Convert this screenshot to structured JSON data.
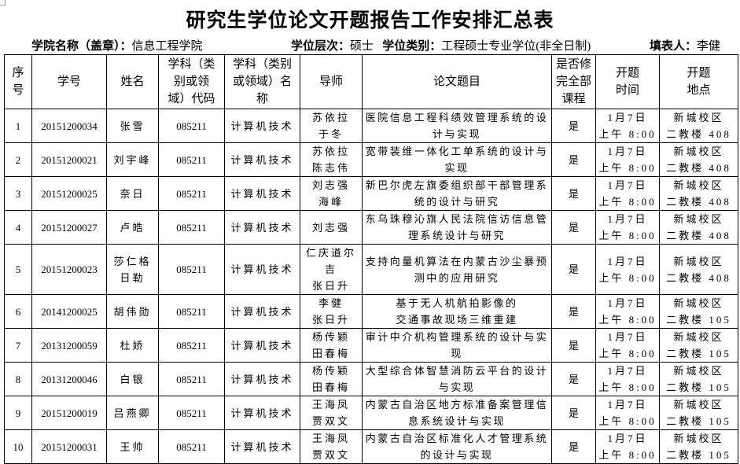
{
  "title": "研究生学位论文开题报告工作安排汇总表",
  "meta": {
    "college_label": "学院名称（盖章）：",
    "college_value": "信息工程学院",
    "level_label": "学位层次：",
    "level_value": "硕士",
    "type_label": "学位类别：",
    "type_value": "工程硕士专业学位(非全日制)",
    "filler_label": "填表人：",
    "filler_value": "李健"
  },
  "headers": [
    "序\n号",
    "学号",
    "姓名",
    "学科（类\n别或领\n域）代码",
    "学科（类别\n或领域）名\n称",
    "导师",
    "论文题目",
    "是否修\n完全部\n课程",
    "开题\n时间",
    "开题\n地点"
  ],
  "rows": [
    {
      "no": "1",
      "id": "20151200034",
      "name": "张雪",
      "code": "085211",
      "subject": "计算机技术",
      "advisor": "苏依拉\n于冬",
      "topic": "医院信息工程科绩效管理系统的设计与实现",
      "done": "是",
      "time": "1月7日\n上午 8:00",
      "place": "新城校区\n二教楼 408"
    },
    {
      "no": "2",
      "id": "20151200021",
      "name": "刘宇峰",
      "code": "085211",
      "subject": "计算机技术",
      "advisor": "苏依拉\n陈志伟",
      "topic": "宽带装维一体化工单系统的设计与实现",
      "done": "是",
      "time": "1月7日\n上午 8:00",
      "place": "新城校区\n二教楼 408"
    },
    {
      "no": "3",
      "id": "20151200025",
      "name": "奈日",
      "code": "085211",
      "subject": "计算机技术",
      "advisor": "刘志强\n海峰",
      "topic": "新巴尔虎左旗委组织部干部管理系统的设计与研究",
      "done": "是",
      "time": "1月7日\n上午 8:00",
      "place": "新城校区\n二教楼 408"
    },
    {
      "no": "4",
      "id": "20151200027",
      "name": "卢皓",
      "code": "085211",
      "subject": "计算机技术",
      "advisor": "刘志强",
      "topic": "东乌珠穆沁旗人民法院信访信息管理系统设计与研究",
      "done": "是",
      "time": "1月7日\n上午 8:00",
      "place": "新城校区\n二教楼 408"
    },
    {
      "no": "5",
      "id": "20151200023",
      "name": "莎仁格日勒",
      "code": "085211",
      "subject": "计算机技术",
      "advisor": "仁庆道尔吉\n张日升",
      "topic": "支持向量机算法在内蒙古沙尘暴预测中的应用研究",
      "done": "是",
      "time": "1月7日\n上午 8:00",
      "place": "新城校区\n二教楼 408"
    },
    {
      "no": "6",
      "id": "20141200025",
      "name": "胡伟勋",
      "code": "085211",
      "subject": "计算机技术",
      "advisor": "李健\n张日升",
      "topic": "基于无人机航拍影像的\n交通事故现场三维重建",
      "done": "是",
      "time": "1月7日\n上午 8:00",
      "place": "新城校区\n二教楼 105"
    },
    {
      "no": "7",
      "id": "20131200059",
      "name": "杜娇",
      "code": "085211",
      "subject": "计算机技术",
      "advisor": "杨传颖\n田春梅",
      "topic": "审计中介机构管理系统的设计与实现",
      "done": "是",
      "time": "1月7日\n上午 8:00",
      "place": "新城校区\n二教楼 105"
    },
    {
      "no": "8",
      "id": "20131200046",
      "name": "白银",
      "code": "085211",
      "subject": "计算机技术",
      "advisor": "杨传颖\n田春梅",
      "topic": "大型综合体智慧消防云平台的设计与实现",
      "done": "是",
      "time": "1月7日\n上午 8:00",
      "place": "新城校区\n二教楼 105"
    },
    {
      "no": "9",
      "id": "20151200019",
      "name": "吕燕卿",
      "code": "085211",
      "subject": "计算机技术",
      "advisor": "王海凤\n贾双文",
      "topic": "内蒙古自治区地方标准备案管理信息系统设计与实现",
      "done": "是",
      "time": "1月7日\n上午 8:00",
      "place": "新城校区\n二教楼 105"
    },
    {
      "no": "10",
      "id": "20151200031",
      "name": "王帅",
      "code": "085211",
      "subject": "计算机技术",
      "advisor": "王海凤\n贾双文",
      "topic": "内蒙古自治区标准化人才管理系统的设计与实现",
      "done": "是",
      "time": "1月7日\n上午 8:00",
      "place": "新城校区\n二教楼 105"
    }
  ]
}
